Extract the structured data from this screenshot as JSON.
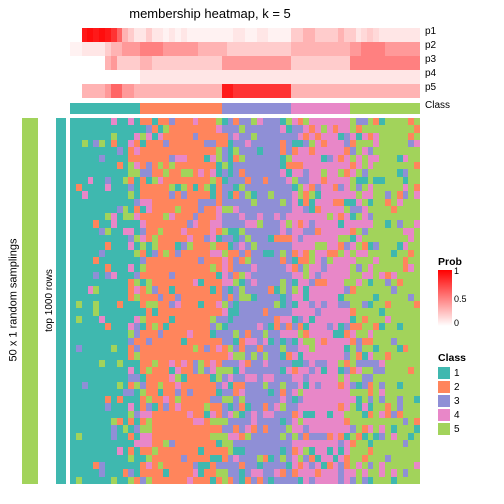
{
  "title": "membership heatmap, k = 5",
  "ylabels": {
    "outer": "50 x 1 random samplings",
    "inner": "top 1000 rows"
  },
  "dims": {
    "cols": 60,
    "rows": 50
  },
  "class_colors": {
    "1": "#3fb8af",
    "2": "#ff855c",
    "3": "#8f8fd6",
    "4": "#e887c8",
    "5": "#a2d35b"
  },
  "side_bar_outer_color": "#a2d35b",
  "side_bar_inner_color": "#3fb8af",
  "prob_gradient": {
    "low": "#ffffff",
    "high": "#ff0000"
  },
  "prob_ticks": [
    "0",
    "0.5",
    "1"
  ],
  "legend_prob_title": "Prob",
  "legend_class_title": "Class",
  "class_items": [
    "1",
    "2",
    "3",
    "4",
    "5"
  ],
  "class_strip": [
    1,
    1,
    1,
    1,
    1,
    1,
    1,
    1,
    1,
    1,
    1,
    1,
    2,
    2,
    2,
    2,
    2,
    2,
    2,
    2,
    2,
    2,
    2,
    2,
    2,
    2,
    3,
    3,
    3,
    3,
    3,
    3,
    3,
    3,
    3,
    3,
    3,
    3,
    4,
    4,
    4,
    4,
    4,
    4,
    4,
    4,
    4,
    4,
    5,
    5,
    5,
    5,
    5,
    5,
    5,
    5,
    5,
    5,
    5,
    5
  ],
  "prob_rows": {
    "labels": [
      "p1",
      "p2",
      "p3",
      "p4",
      "p5",
      "Class"
    ],
    "label_right_x": 425,
    "data": [
      [
        0,
        0,
        0.9,
        0.95,
        0.9,
        0.95,
        0.9,
        0.8,
        0.6,
        0.3,
        0.2,
        0.1,
        0.1,
        0.2,
        0.1,
        0.1,
        0.05,
        0.1,
        0.05,
        0.1,
        0.05,
        0.05,
        0.05,
        0.05,
        0.05,
        0.05,
        0.05,
        0.05,
        0.1,
        0.1,
        0.05,
        0.05,
        0.1,
        0.1,
        0.05,
        0.05,
        0.05,
        0.05,
        0.2,
        0.2,
        0.3,
        0.3,
        0.2,
        0.2,
        0.2,
        0.2,
        0.3,
        0.2,
        0.2,
        0.1,
        0.15,
        0.2,
        0.15,
        0.1,
        0.1,
        0.1,
        0.1,
        0.1,
        0.1,
        0.1
      ],
      [
        0.05,
        0.05,
        0.1,
        0.1,
        0.1,
        0.1,
        0.2,
        0.3,
        0.3,
        0.4,
        0.4,
        0.4,
        0.5,
        0.5,
        0.5,
        0.5,
        0.4,
        0.4,
        0.4,
        0.4,
        0.4,
        0.4,
        0.3,
        0.3,
        0.3,
        0.3,
        0.3,
        0.2,
        0.2,
        0.2,
        0.2,
        0.2,
        0.2,
        0.2,
        0.2,
        0.2,
        0.2,
        0.2,
        0.3,
        0.3,
        0.3,
        0.3,
        0.3,
        0.3,
        0.3,
        0.3,
        0.3,
        0.3,
        0.4,
        0.4,
        0.5,
        0.5,
        0.5,
        0.5,
        0.4,
        0.4,
        0.4,
        0.4,
        0.4,
        0.4
      ],
      [
        0,
        0,
        0,
        0,
        0,
        0,
        0.3,
        0.4,
        0.2,
        0.2,
        0.2,
        0.2,
        0.3,
        0.3,
        0.2,
        0.2,
        0.2,
        0.2,
        0.2,
        0.2,
        0.2,
        0.2,
        0.2,
        0.2,
        0.2,
        0.2,
        0.4,
        0.4,
        0.4,
        0.4,
        0.4,
        0.4,
        0.4,
        0.4,
        0.4,
        0.4,
        0.4,
        0.4,
        0.2,
        0.2,
        0.2,
        0.2,
        0.2,
        0.2,
        0.2,
        0.2,
        0.2,
        0.2,
        0.5,
        0.5,
        0.5,
        0.5,
        0.5,
        0.5,
        0.5,
        0.5,
        0.5,
        0.5,
        0.5,
        0.5
      ],
      [
        0,
        0,
        0,
        0,
        0,
        0,
        0,
        0,
        0,
        0,
        0,
        0,
        0.1,
        0.1,
        0.1,
        0.1,
        0.1,
        0.1,
        0.1,
        0.1,
        0.1,
        0.1,
        0.1,
        0.1,
        0.1,
        0.1,
        0.1,
        0.1,
        0.1,
        0.1,
        0.1,
        0.1,
        0.1,
        0.1,
        0.1,
        0.1,
        0.1,
        0.1,
        0.1,
        0.1,
        0.1,
        0.1,
        0.1,
        0.1,
        0.1,
        0.1,
        0.1,
        0.1,
        0.1,
        0.1,
        0.1,
        0.1,
        0.1,
        0.1,
        0.1,
        0.1,
        0.1,
        0.1,
        0.1,
        0.1
      ],
      [
        0,
        0,
        0.3,
        0.3,
        0.3,
        0.3,
        0.4,
        0.6,
        0.6,
        0.4,
        0.4,
        0.3,
        0.3,
        0.3,
        0.3,
        0.3,
        0.3,
        0.3,
        0.3,
        0.3,
        0.3,
        0.3,
        0.3,
        0.3,
        0.3,
        0.3,
        0.9,
        0.9,
        0.8,
        0.8,
        0.8,
        0.8,
        0.8,
        0.8,
        0.8,
        0.8,
        0.8,
        0.8,
        0.3,
        0.3,
        0.3,
        0.3,
        0.3,
        0.3,
        0.3,
        0.3,
        0.3,
        0.3,
        0.3,
        0.3,
        0.3,
        0.3,
        0.3,
        0.3,
        0.3,
        0.3,
        0.3,
        0.3,
        0.3,
        0.3
      ]
    ]
  },
  "heatmap_noise_seed": 42
}
